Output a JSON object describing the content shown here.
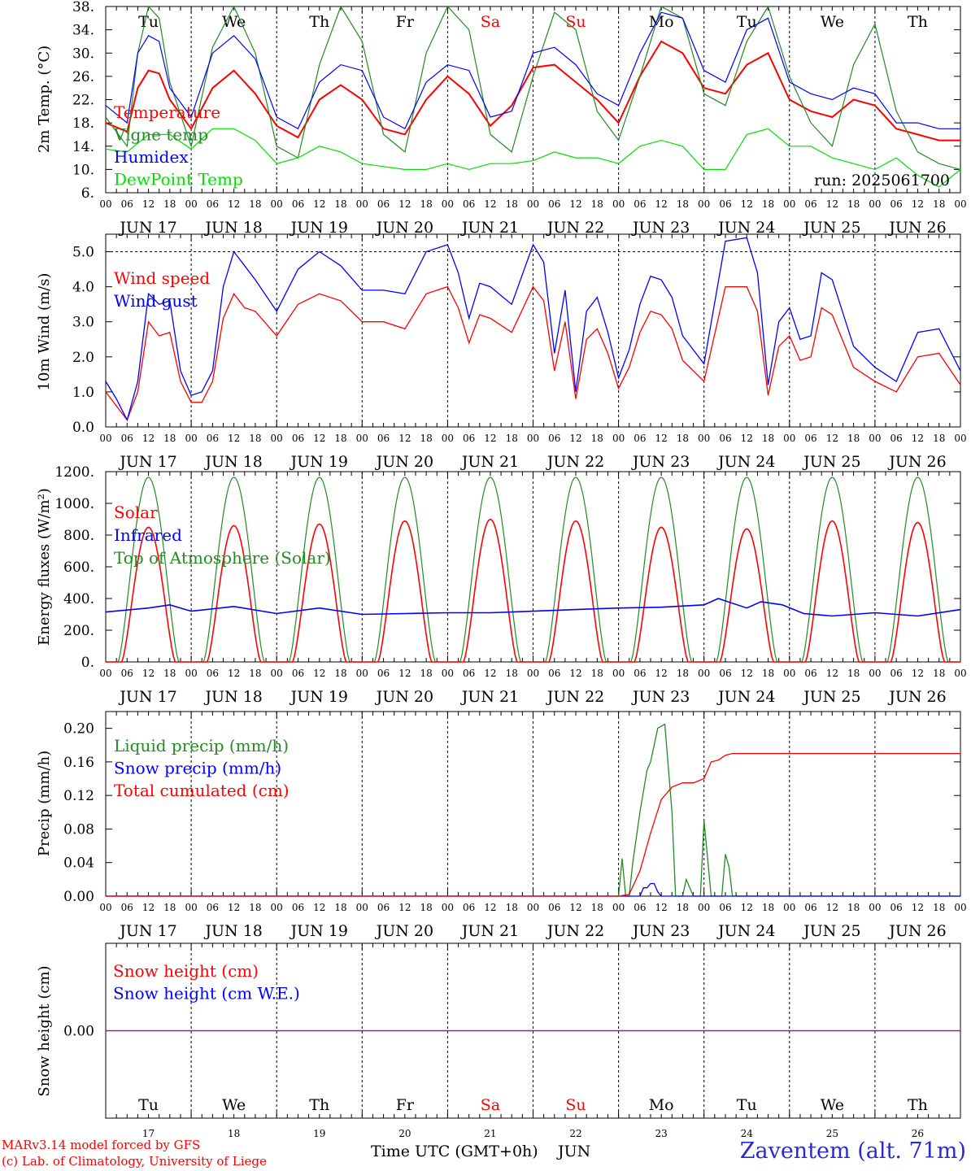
{
  "run_label": "run: 2025061700",
  "footer": {
    "model": "MARv3.14 model forced by GFS",
    "copyright": "(c) Lab. of Climatology, University of Liege",
    "xaxis": "Time UTC (GMT+0h)",
    "month": "JUN",
    "station": "Zaventem (alt. 71m)"
  },
  "time_axis": {
    "hour_ticks": [
      "00",
      "06",
      "12",
      "18"
    ],
    "dates": [
      "JUN 17",
      "JUN 18",
      "JUN 19",
      "JUN 20",
      "JUN 21",
      "JUN 22",
      "JUN 23",
      "JUN 24",
      "JUN 25",
      "JUN 26"
    ],
    "weekdays": [
      "Tu",
      "We",
      "Th",
      "Fr",
      "Sa",
      "Su",
      "Mo",
      "Tu",
      "We",
      "Th"
    ],
    "day_numbers": [
      "17",
      "18",
      "19",
      "20",
      "21",
      "22",
      "23",
      "24",
      "25",
      "26"
    ],
    "weekend_color": "#ff0000",
    "weekend_days": [
      "Sa",
      "Su"
    ]
  },
  "colors": {
    "red": "#ff0000",
    "blue": "#0000ff",
    "green": "#228b22",
    "lime": "#00e000"
  },
  "chart_data": [
    {
      "type": "line",
      "ylabel": "2m Temp. (°C)",
      "ylim": [
        6,
        38
      ],
      "yticks": [
        "6.",
        "10.",
        "14.",
        "18.",
        "22.",
        "26.",
        "30.",
        "34.",
        "38."
      ],
      "x_unit": "hours since 2025-06-17 00 UTC",
      "series": [
        {
          "name": "Temperature",
          "color": "red",
          "x": [
            0,
            6,
            9,
            12,
            15,
            18,
            24,
            30,
            36,
            42,
            48,
            54,
            60,
            66,
            72,
            78,
            84,
            90,
            96,
            102,
            108,
            114,
            120,
            126,
            132,
            138,
            144,
            150,
            156,
            162,
            168,
            174,
            180,
            186,
            192,
            198,
            204,
            210,
            216,
            222,
            228,
            234,
            240
          ],
          "values": [
            18,
            16.5,
            24,
            27,
            26.5,
            22,
            17,
            24,
            27,
            23,
            17.5,
            15.5,
            22,
            24.5,
            22,
            17,
            16,
            22,
            26,
            23,
            17.5,
            21,
            27.5,
            28,
            25,
            22,
            18,
            26,
            32,
            30,
            24,
            23,
            28,
            30,
            22,
            20,
            19,
            22,
            21,
            17,
            16,
            15,
            15
          ]
        },
        {
          "name": "Vigne temp",
          "color": "green",
          "x": [
            0,
            6,
            9,
            12,
            15,
            18,
            24,
            30,
            36,
            42,
            48,
            54,
            60,
            66,
            72,
            78,
            84,
            90,
            96,
            102,
            108,
            114,
            120,
            126,
            132,
            138,
            144,
            150,
            156,
            162,
            168,
            174,
            180,
            186,
            192,
            198,
            204,
            210,
            216,
            222,
            228,
            234,
            240
          ],
          "values": [
            19,
            14,
            30,
            38,
            36,
            25,
            14,
            31,
            38,
            30,
            14,
            12,
            28,
            38,
            32,
            16,
            13,
            30,
            38,
            34,
            16,
            13,
            26,
            37,
            34,
            20,
            15,
            26,
            38,
            36,
            23,
            21,
            32,
            38,
            26,
            18,
            14,
            28,
            35,
            20,
            13,
            11,
            10
          ]
        },
        {
          "name": "Humidex",
          "color": "blue",
          "x": [
            0,
            6,
            9,
            12,
            15,
            18,
            24,
            30,
            36,
            42,
            48,
            54,
            60,
            66,
            72,
            78,
            84,
            90,
            96,
            102,
            108,
            114,
            120,
            126,
            132,
            138,
            144,
            150,
            156,
            162,
            168,
            174,
            180,
            186,
            192,
            198,
            204,
            210,
            216,
            222,
            228,
            234,
            240
          ],
          "values": [
            21,
            18,
            30,
            33,
            32,
            24,
            19,
            30,
            33,
            29,
            19,
            17,
            25,
            28,
            27,
            19,
            17,
            25,
            28,
            27,
            19,
            20,
            30,
            31,
            28,
            23,
            21,
            30,
            37,
            36,
            27,
            25,
            34,
            36,
            25,
            23,
            22,
            24,
            23,
            18,
            18,
            17,
            17
          ]
        },
        {
          "name": "DewPoint Temp",
          "color": "lime",
          "x": [
            0,
            6,
            12,
            18,
            24,
            30,
            36,
            42,
            48,
            54,
            60,
            66,
            72,
            78,
            84,
            90,
            96,
            102,
            108,
            114,
            120,
            126,
            132,
            138,
            144,
            150,
            156,
            162,
            168,
            174,
            180,
            186,
            192,
            198,
            204,
            210,
            216,
            222,
            228,
            234,
            240
          ],
          "values": [
            13.5,
            13,
            16,
            16,
            13.5,
            17,
            17,
            15,
            11,
            12,
            14,
            13,
            11,
            10.5,
            10,
            10,
            11,
            10,
            11,
            11,
            11.5,
            13,
            12,
            12,
            11,
            14,
            15,
            14,
            10,
            10,
            16,
            17,
            14,
            14,
            12,
            11,
            10,
            12,
            9,
            7,
            10
          ]
        }
      ]
    },
    {
      "type": "line",
      "ylabel": "10m Wind (m/s)",
      "ylim": [
        0,
        5.5
      ],
      "yticks": [
        "0.0",
        "1.0",
        "2.0",
        "3.0",
        "4.0",
        "5.0"
      ],
      "ref_line": 5.0,
      "series": [
        {
          "name": "Wind speed",
          "color": "red",
          "x": [
            0,
            3,
            6,
            9,
            12,
            15,
            18,
            21,
            24,
            27,
            30,
            33,
            36,
            39,
            42,
            48,
            54,
            60,
            66,
            72,
            78,
            84,
            90,
            96,
            99,
            102,
            105,
            108,
            114,
            120,
            123,
            126,
            129,
            132,
            135,
            138,
            141,
            144,
            147,
            150,
            153,
            156,
            159,
            162,
            168,
            174,
            180,
            183,
            186,
            189,
            192,
            195,
            198,
            201,
            204,
            210,
            216,
            222,
            228,
            234,
            240
          ],
          "values": [
            1,
            0.6,
            0.2,
            1,
            3,
            2.6,
            2.7,
            1.3,
            0.7,
            0.7,
            1.3,
            3.1,
            3.8,
            3.4,
            3.3,
            2.6,
            3.5,
            3.8,
            3.6,
            3,
            3,
            2.8,
            3.8,
            4,
            3.4,
            2.4,
            3.2,
            3.1,
            2.7,
            4,
            3.6,
            1.6,
            3,
            0.8,
            2.5,
            2.8,
            2.1,
            1.1,
            1.7,
            2.7,
            3.3,
            3.2,
            2.8,
            1.9,
            1.3,
            4,
            4,
            3.3,
            0.9,
            2.3,
            2.6,
            1.9,
            2,
            3.4,
            3.2,
            1.7,
            1.3,
            1,
            2,
            2.1,
            1.2
          ]
        },
        {
          "name": "Wind gust",
          "color": "blue",
          "x": [
            0,
            3,
            6,
            9,
            12,
            15,
            18,
            21,
            24,
            27,
            30,
            33,
            36,
            39,
            42,
            48,
            54,
            60,
            66,
            72,
            78,
            84,
            90,
            96,
            99,
            102,
            105,
            108,
            114,
            120,
            123,
            126,
            129,
            132,
            135,
            138,
            141,
            144,
            147,
            150,
            153,
            156,
            159,
            162,
            168,
            174,
            180,
            183,
            186,
            189,
            192,
            195,
            198,
            201,
            204,
            210,
            216,
            222,
            228,
            234,
            240
          ],
          "values": [
            1.3,
            0.8,
            0.2,
            1.3,
            3.8,
            3.5,
            3.6,
            1.6,
            0.9,
            1,
            1.6,
            4,
            5,
            4.6,
            4.2,
            3.3,
            4.5,
            5,
            4.6,
            3.9,
            3.9,
            3.8,
            5,
            5.2,
            4.4,
            3.1,
            4.1,
            4,
            3.5,
            5.2,
            4.7,
            2.1,
            3.9,
            1,
            3.3,
            3.7,
            2.7,
            1.4,
            2.2,
            3.5,
            4.3,
            4.2,
            3.7,
            2.6,
            1.8,
            5.3,
            5.4,
            4.4,
            1.2,
            3,
            3.4,
            2.5,
            2.6,
            4.4,
            4.2,
            2.3,
            1.7,
            1.3,
            2.7,
            2.8,
            1.6
          ]
        }
      ]
    },
    {
      "type": "line",
      "ylabel": "Energy fluxes (W/m²)",
      "ylim": [
        0,
        1200
      ],
      "yticks": [
        "0.",
        "200.",
        "400.",
        "600.",
        "800.",
        "1000.",
        "1200."
      ],
      "series": [
        {
          "name": "Solar",
          "color": "red",
          "daily_peaks": [
            850,
            860,
            870,
            890,
            900,
            890,
            850,
            840,
            890,
            880
          ]
        },
        {
          "name": "Infrared",
          "color": "blue",
          "x": [
            0,
            12,
            18,
            24,
            36,
            48,
            60,
            72,
            84,
            96,
            108,
            120,
            132,
            144,
            156,
            168,
            172,
            180,
            184,
            190,
            196,
            204,
            216,
            228,
            240
          ],
          "values": [
            315,
            340,
            360,
            320,
            350,
            305,
            340,
            300,
            305,
            310,
            310,
            320,
            330,
            340,
            345,
            360,
            400,
            340,
            380,
            360,
            305,
            290,
            310,
            290,
            330
          ]
        },
        {
          "name": "Top of Atmosphere (Solar)",
          "color": "green",
          "daily_peaks": [
            1165,
            1165,
            1165,
            1165,
            1165,
            1165,
            1165,
            1165,
            1165,
            1165
          ]
        }
      ]
    },
    {
      "type": "line",
      "ylabel": "Precip (mm/h)",
      "ylim": [
        0,
        0.22
      ],
      "yticks": [
        "0.00",
        "0.04",
        "0.08",
        "0.12",
        "0.16",
        "0.20"
      ],
      "series": [
        {
          "name": "Liquid precip (mm/h)",
          "color": "green",
          "x": [
            0,
            144,
            145,
            146,
            147,
            148,
            150,
            152,
            153,
            155,
            157,
            159,
            160,
            162,
            163,
            165,
            166,
            167,
            168,
            170,
            171,
            172,
            173,
            174,
            175,
            176,
            177,
            240
          ],
          "values": [
            0,
            0,
            0.045,
            0,
            0,
            0.04,
            0.1,
            0.15,
            0.16,
            0.2,
            0.205,
            0.1,
            0,
            0,
            0.02,
            0,
            0,
            0,
            0.09,
            0,
            0,
            0,
            0,
            0.05,
            0.035,
            0,
            0,
            0
          ]
        },
        {
          "name": "Snow precip (mm/h)",
          "color": "blue",
          "x": [
            0,
            150,
            151,
            152,
            153,
            154,
            155,
            156,
            240
          ],
          "values": [
            0,
            0,
            0.01,
            0.01,
            0.015,
            0.015,
            0.005,
            0,
            0
          ]
        },
        {
          "name": "Total cumulated (cm)",
          "color": "red",
          "x": [
            0,
            144,
            147,
            150,
            153,
            156,
            159,
            162,
            165,
            168,
            170,
            172,
            174,
            176,
            240
          ],
          "values": [
            0,
            0,
            0.002,
            0.03,
            0.075,
            0.115,
            0.13,
            0.135,
            0.135,
            0.14,
            0.16,
            0.162,
            0.168,
            0.17,
            0.17
          ]
        }
      ]
    },
    {
      "type": "line",
      "ylabel": "Snow height (cm)",
      "ylim": [
        -0.5,
        0.5
      ],
      "yticks": [
        "0.00"
      ],
      "series": [
        {
          "name": "Snow height (cm)",
          "color": "red",
          "x": [
            0,
            240
          ],
          "values": [
            0,
            0
          ]
        },
        {
          "name": "Snow height (cm W.E.)",
          "color": "blue",
          "x": [
            0,
            240
          ],
          "values": [
            0,
            0
          ]
        }
      ]
    }
  ]
}
